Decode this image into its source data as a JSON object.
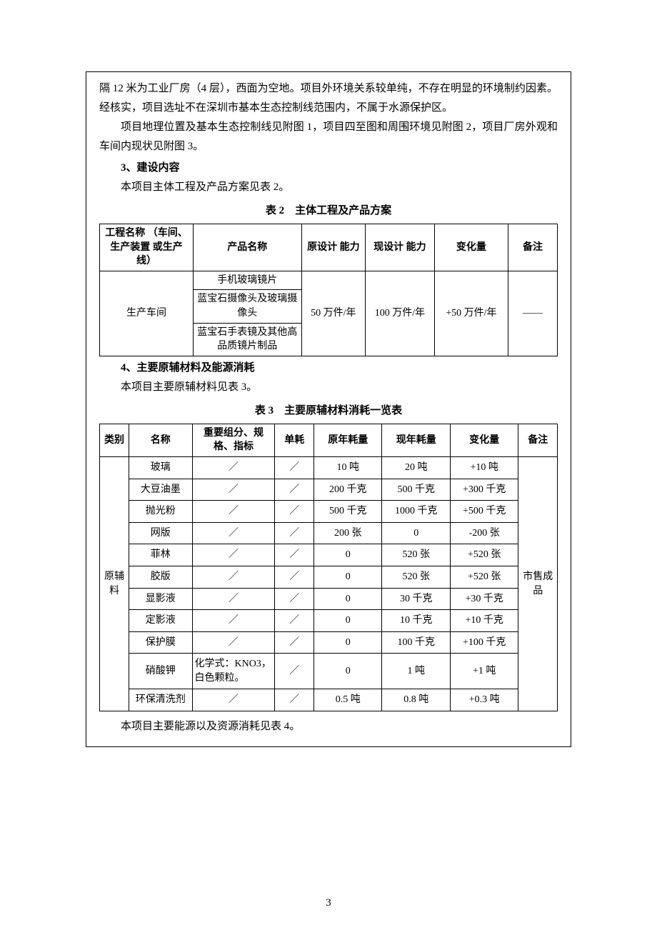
{
  "colors": {
    "text": "#000000",
    "background": "#ffffff",
    "border": "#000000"
  },
  "typography": {
    "body_fontsize_pt": 11,
    "title_fontsize_pt": 11,
    "font_family": "SimSun"
  },
  "page_number": "3",
  "para1": "隔 12 米为工业厂房（4 层），西面为空地。项目外环境关系较单纯，不存在明显的环境制约因素。经核实，项目选址不在深圳市基本生态控制线范围内，不属于水源保护区。",
  "para2": "项目地理位置及基本生态控制线见附图 1，项目四至图和周围环境见附图 2，项目厂房外观和车间内现状见附图 3。",
  "sec3_heading": "3、建设内容",
  "sec3_line": "本项目主体工程及产品方案见表 2。",
  "table2": {
    "title": "表 2　主体工程及产品方案",
    "columns": [
      "工程名称\n（车间、生产装置\n或生产线）",
      "产品名称",
      "原设计\n能力",
      "现设计\n能力",
      "变化量",
      "备注"
    ],
    "col_widths_pct": [
      19,
      22,
      13,
      14,
      15,
      10
    ],
    "workshop": "生产车间",
    "products": [
      "手机玻璃镜片",
      "蓝宝石摄像头及玻璃摄像头",
      "蓝宝石手表镜及其他高品质镜片制品"
    ],
    "orig_cap": "50 万件/年",
    "new_cap": "100 万件/年",
    "delta": "+50 万件/年",
    "note": "——"
  },
  "sec4_heading": "4、主要原辅材料及能源消耗",
  "sec4_line": "本项目主要原辅材料见表 3。",
  "table3": {
    "title": "表 3　主要原辅材料消耗一览表",
    "columns": [
      "类别",
      "名称",
      "重要组分、规格、指标",
      "单耗",
      "原年耗量",
      "现年耗量",
      "变化量",
      "备注"
    ],
    "col_widths_pct": [
      6,
      13,
      17,
      8,
      14,
      14,
      14,
      8
    ],
    "category": "原辅料",
    "remark": "市售成品",
    "rows": [
      {
        "name": "玻璃",
        "spec": "／",
        "unit": "／",
        "orig": "10 吨",
        "now": "20 吨",
        "delta": "+10 吨"
      },
      {
        "name": "大豆油墨",
        "spec": "／",
        "unit": "／",
        "orig": "200 千克",
        "now": "500 千克",
        "delta": "+300 千克"
      },
      {
        "name": "抛光粉",
        "spec": "／",
        "unit": "／",
        "orig": "500 千克",
        "now": "1000 千克",
        "delta": "+500 千克"
      },
      {
        "name": "网版",
        "spec": "／",
        "unit": "／",
        "orig": "200 张",
        "now": "0",
        "delta": "-200 张"
      },
      {
        "name": "菲林",
        "spec": "／",
        "unit": "／",
        "orig": "0",
        "now": "520 张",
        "delta": "+520 张"
      },
      {
        "name": "胶版",
        "spec": "／",
        "unit": "／",
        "orig": "0",
        "now": "520 张",
        "delta": "+520 张"
      },
      {
        "name": "显影液",
        "spec": "／",
        "unit": "／",
        "orig": "0",
        "now": "30 千克",
        "delta": "+30 千克"
      },
      {
        "name": "定影液",
        "spec": "／",
        "unit": "／",
        "orig": "0",
        "now": "10 千克",
        "delta": "+10 千克"
      },
      {
        "name": "保护膜",
        "spec": "／",
        "unit": "／",
        "orig": "0",
        "now": "100 千克",
        "delta": "+100 千克"
      },
      {
        "name": "硝酸钾",
        "spec": "化学式：KNO3，白色颗粒。",
        "unit": "／",
        "orig": "0",
        "now": "1 吨",
        "delta": "+1 吨"
      },
      {
        "name": "环保清洗剂",
        "spec": "／",
        "unit": "／",
        "orig": "0.5 吨",
        "now": "0.8 吨",
        "delta": "+0.3 吨"
      }
    ]
  },
  "sec4_tail": "本项目主要能源以及资源消耗见表 4。"
}
